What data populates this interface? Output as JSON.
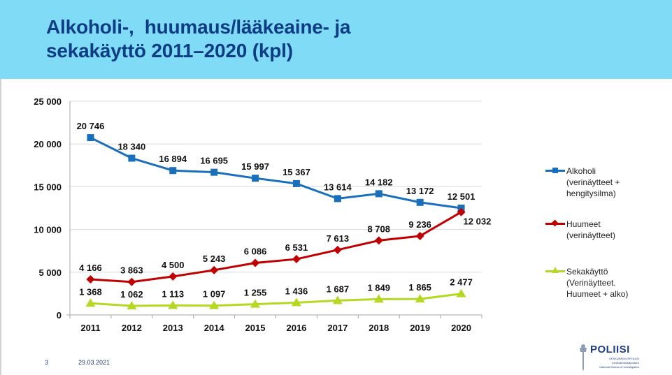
{
  "slide": {
    "title_lines": [
      "Alkoholi-,  huumaus/lääkeaine- ja",
      "sekakäyttö 2011–2020 (kpl)"
    ],
    "page_number": "3",
    "date": "29.03.2021",
    "logo": {
      "name": "POLIISI",
      "sub1": "KESKUSRIKOSPOLIISI",
      "sub2": "Centralkriminalpolisen",
      "sub3": "National Bureau of Investigation"
    },
    "banner_color": "#80dcf6",
    "title_color": "#0f3d85"
  },
  "chart_data": {
    "type": "line",
    "title": "Alkoholi-,  huumaus/lääkeaine- ja sekakäyttö 2011–2020 (kpl)",
    "xlabel": "",
    "ylabel": "",
    "categories": [
      "2011",
      "2012",
      "2013",
      "2014",
      "2015",
      "2016",
      "2017",
      "2018",
      "2019",
      "2020"
    ],
    "ylim": [
      0,
      25000
    ],
    "yticks": [
      0,
      5000,
      10000,
      15000,
      20000,
      25000
    ],
    "ytick_labels": [
      "0",
      "5 000",
      "10 000",
      "15 000",
      "20 000",
      "25 000"
    ],
    "grid": true,
    "legend_position": "right",
    "series": [
      {
        "name": "Alkoholi (verinäytteet + hengitysilma)",
        "legend_lines": [
          "Alkoholi",
          "(verinäytteet +",
          "hengitysilma)"
        ],
        "color": "#1a6fbd",
        "marker": "square",
        "values": [
          20746,
          18340,
          16894,
          16695,
          15997,
          15367,
          13614,
          14182,
          13172,
          12501
        ],
        "labels": [
          "20 746",
          "18 340",
          "16 894",
          "16 695",
          "15 997",
          "15 367",
          "13 614",
          "14 182",
          "13 172",
          "12 501"
        ]
      },
      {
        "name": "Huumeet (verinäytteet)",
        "legend_lines": [
          "Huumeet",
          "(verinäytteet)"
        ],
        "color": "#c00000",
        "marker": "diamond",
        "values": [
          4166,
          3863,
          4500,
          5243,
          6086,
          6531,
          7613,
          8708,
          9236,
          12032
        ],
        "labels": [
          "4 166",
          "3 863",
          "4 500",
          "5 243",
          "6 086",
          "6 531",
          "7 613",
          "8 708",
          "9 236",
          "12 032"
        ]
      },
      {
        "name": "Sekakäyttö (Verinäytteet. Huumeet + alko)",
        "legend_lines": [
          "Sekakäyttö",
          "(Verinäytteet.",
          "Huumeet + alko)"
        ],
        "color": "#b5d922",
        "marker": "triangle",
        "values": [
          1368,
          1062,
          1113,
          1097,
          1255,
          1436,
          1687,
          1849,
          1865,
          2477
        ],
        "labels": [
          "1 368",
          "1 062",
          "1 113",
          "1 097",
          "1 255",
          "1 436",
          "1 687",
          "1 849",
          "1 865",
          "2 477"
        ]
      }
    ]
  }
}
